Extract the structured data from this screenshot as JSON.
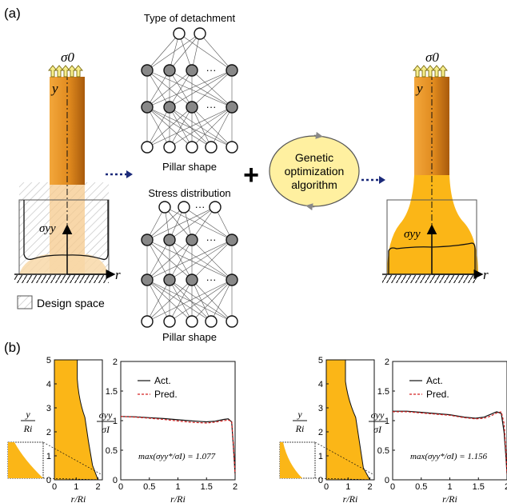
{
  "panel_a": {
    "label": "(a)",
    "sigma0_left": "σ0",
    "sigma0_right": "σ0",
    "y_axis_left": "y",
    "y_axis_right": "y",
    "r_axis_left": "r",
    "r_axis_right": "r",
    "sigma_yy_left": "σyy",
    "sigma_yy_right": "σyy",
    "design_space_label": "Design space",
    "nn_top": {
      "title": "Type of detachment",
      "bottom_label": "Pillar shape"
    },
    "nn_bottom": {
      "title": "Stress distribution",
      "bottom_label": "Pillar shape"
    },
    "ellipsis": "···",
    "plus": "+",
    "ga_line1": "Genetic",
    "ga_line2": "optimization",
    "ga_line3": "algorithm",
    "colors": {
      "pillar_light": "#f6a623",
      "pillar_dark": "#b8650a",
      "gold": "#fbb617",
      "design_space_fill": "#f8d8a8",
      "arrow_blue": "#1b2a7a",
      "ga_fill": "#fff0a0"
    }
  },
  "panel_b": {
    "label": "(b)",
    "shape_ylabel_num": "y",
    "shape_ylabel_den": "Ri",
    "shape_xlabel": "r/Ri",
    "shape_yticks": [
      "0",
      "1",
      "2",
      "3",
      "4",
      "5"
    ],
    "shape_xticks": [
      "0",
      "1",
      "2"
    ],
    "plot_ylabel_num": "σyy",
    "plot_ylabel_den": "σI",
    "plot_xlabel": "r/Ri",
    "plot_yticks": [
      "0",
      "0.5",
      "1",
      "1.5",
      "2"
    ],
    "plot_xticks": [
      "0",
      "0.5",
      "1",
      "1.5",
      "2"
    ],
    "legend_act": "Act.",
    "legend_pred": "Pred.",
    "left_max_label": "max(σyy*/σI) = 1.077",
    "right_max_label": "max(σyy*/σI) = 1.156"
  },
  "chart_data": [
    {
      "type": "line",
      "xlabel": "r/Ri",
      "ylabel": "σyy/σI",
      "xlim": [
        0,
        2
      ],
      "ylim": [
        0,
        2
      ],
      "series": [
        {
          "name": "Act.",
          "x": [
            0,
            0.25,
            0.5,
            0.75,
            1.0,
            1.25,
            1.5,
            1.65,
            1.8,
            1.88,
            1.94,
            1.97,
            2.0
          ],
          "y": [
            1.07,
            1.065,
            1.05,
            1.035,
            1.015,
            0.995,
            0.98,
            0.99,
            1.02,
            1.03,
            0.98,
            0.55,
            0.1
          ]
        },
        {
          "name": "Pred.",
          "x": [
            0,
            0.25,
            0.5,
            0.75,
            1.0,
            1.25,
            1.5,
            1.65,
            1.8,
            1.88,
            1.94,
            1.97,
            2.0
          ],
          "y": [
            1.07,
            1.06,
            1.04,
            1.02,
            0.995,
            0.97,
            0.96,
            0.975,
            1.0,
            1.01,
            0.99,
            0.6,
            0.1
          ]
        }
      ],
      "annotation": "max(σyy*/σI) = 1.077"
    },
    {
      "type": "line",
      "xlabel": "r/Ri",
      "ylabel": "σyy/σI",
      "xlim": [
        0,
        2
      ],
      "ylim": [
        0,
        2
      ],
      "series": [
        {
          "name": "Act.",
          "x": [
            0,
            0.25,
            0.5,
            0.75,
            1.0,
            1.25,
            1.45,
            1.6,
            1.72,
            1.82,
            1.9,
            1.95,
            1.98,
            2.0
          ],
          "y": [
            1.16,
            1.16,
            1.14,
            1.12,
            1.1,
            1.06,
            1.04,
            1.06,
            1.11,
            1.15,
            1.12,
            0.8,
            0.4,
            0.1
          ]
        },
        {
          "name": "Pred.",
          "x": [
            0,
            0.25,
            0.5,
            0.75,
            1.0,
            1.25,
            1.45,
            1.6,
            1.72,
            1.82,
            1.9,
            1.95,
            1.98,
            2.0
          ],
          "y": [
            1.15,
            1.15,
            1.13,
            1.11,
            1.09,
            1.05,
            1.03,
            1.04,
            1.08,
            1.13,
            1.15,
            0.95,
            0.5,
            0.1
          ]
        }
      ],
      "annotation": "max(σyy*/σI) = 1.156"
    }
  ]
}
